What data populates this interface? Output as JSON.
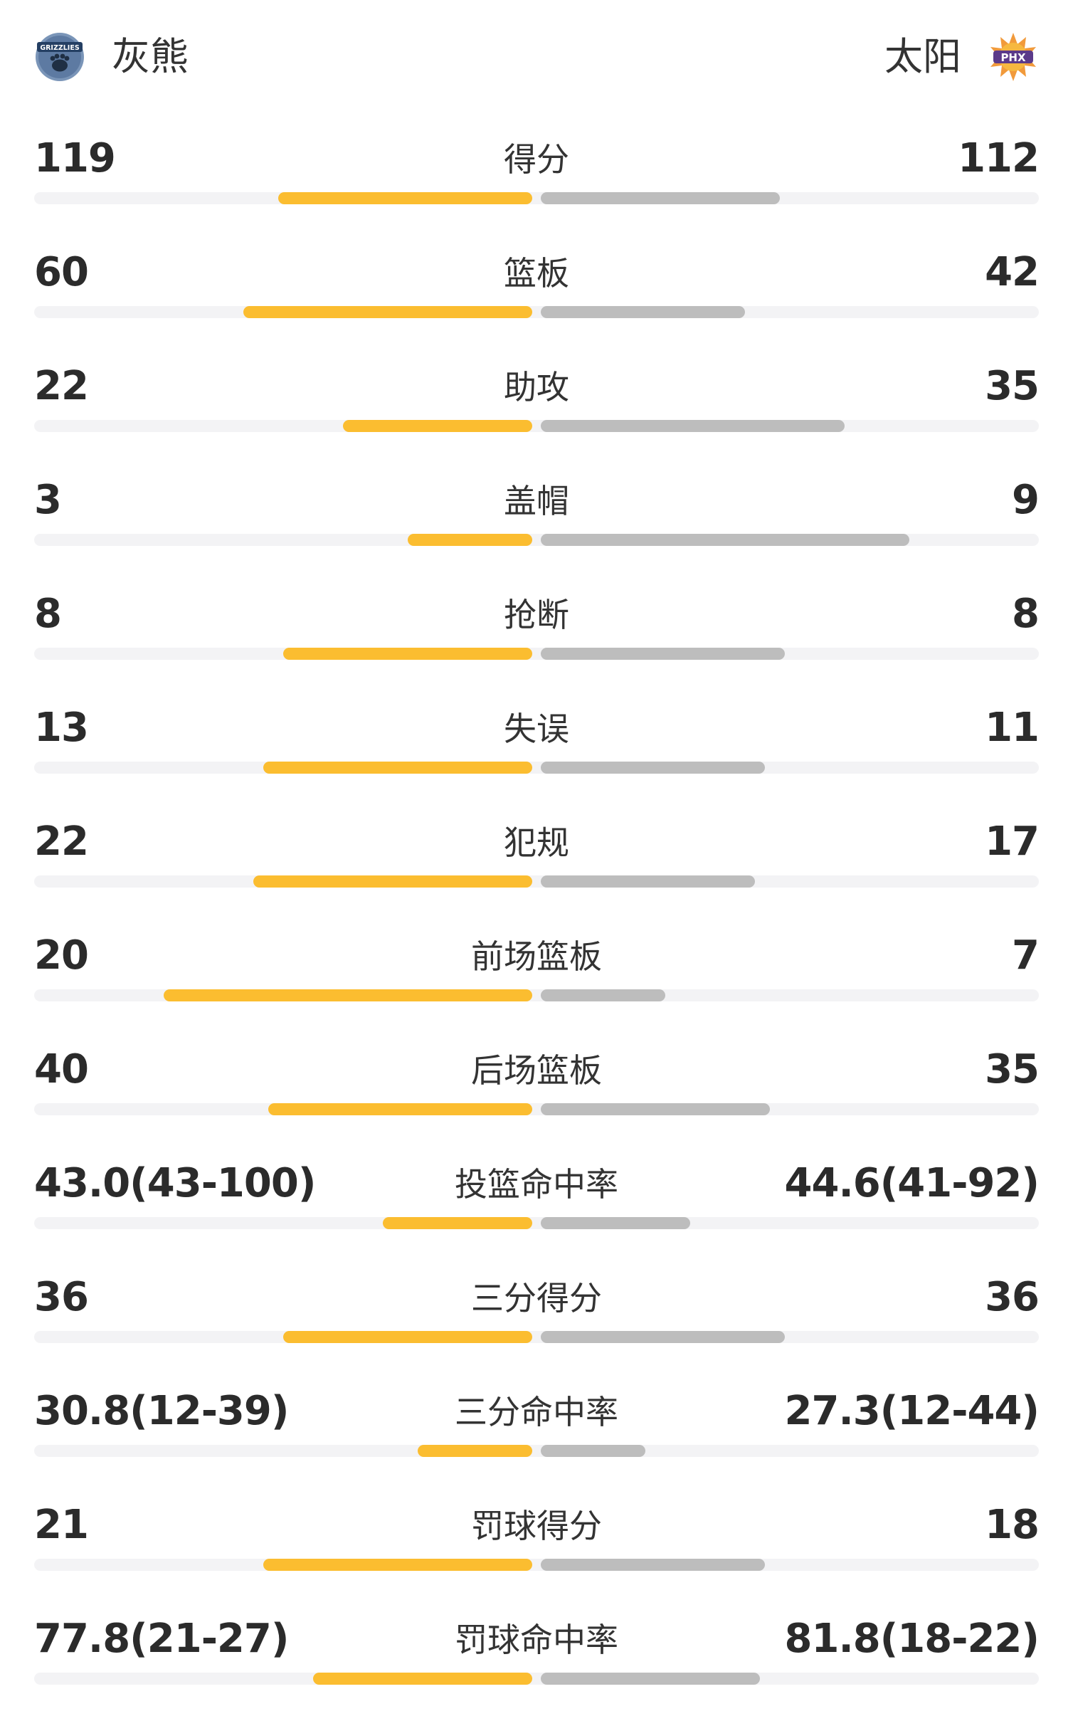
{
  "header": {
    "left_team": {
      "name": "灰熊",
      "logo_text": "GRIZZLIES",
      "logo_icon": "grizzlies-logo"
    },
    "right_team": {
      "name": "太阳",
      "logo_text": "PHX",
      "logo_icon": "suns-logo"
    }
  },
  "colors": {
    "left_bar": "#fbbd30",
    "right_bar": "#bdbdbd",
    "track": "#f3f3f5"
  },
  "stats": [
    {
      "label": "得分",
      "left": "119",
      "right": "112",
      "left_fill": 0.51,
      "right_fill": 0.48
    },
    {
      "label": "篮板",
      "left": "60",
      "right": "42",
      "left_fill": 0.58,
      "right_fill": 0.41
    },
    {
      "label": "助攻",
      "left": "22",
      "right": "35",
      "left_fill": 0.38,
      "right_fill": 0.61
    },
    {
      "label": "盖帽",
      "left": "3",
      "right": "9",
      "left_fill": 0.25,
      "right_fill": 0.74
    },
    {
      "label": "抢断",
      "left": "8",
      "right": "8",
      "left_fill": 0.5,
      "right_fill": 0.49
    },
    {
      "label": "失误",
      "left": "13",
      "right": "11",
      "left_fill": 0.54,
      "right_fill": 0.45
    },
    {
      "label": "犯规",
      "left": "22",
      "right": "17",
      "left_fill": 0.56,
      "right_fill": 0.43
    },
    {
      "label": "前场篮板",
      "left": "20",
      "right": "7",
      "left_fill": 0.74,
      "right_fill": 0.25
    },
    {
      "label": "后场篮板",
      "left": "40",
      "right": "35",
      "left_fill": 0.53,
      "right_fill": 0.46
    },
    {
      "label": "投篮命中率",
      "left": "43.0(43-100)",
      "right": "44.6(41-92)",
      "left_fill": 0.3,
      "right_fill": 0.3
    },
    {
      "label": "三分得分",
      "left": "36",
      "right": "36",
      "left_fill": 0.5,
      "right_fill": 0.49
    },
    {
      "label": "三分命中率",
      "left": "30.8(12-39)",
      "right": "27.3(12-44)",
      "left_fill": 0.23,
      "right_fill": 0.21
    },
    {
      "label": "罚球得分",
      "left": "21",
      "right": "18",
      "left_fill": 0.54,
      "right_fill": 0.45
    },
    {
      "label": "罚球命中率",
      "left": "77.8(21-27)",
      "right": "81.8(18-22)",
      "left_fill": 0.44,
      "right_fill": 0.44
    }
  ]
}
